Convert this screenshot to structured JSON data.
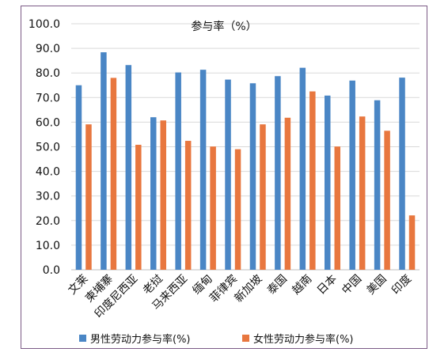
{
  "chart_data": {
    "type": "bar",
    "title": "参与率（%）",
    "categories": [
      "文莱",
      "柬埔寨",
      "印度尼西亚",
      "老挝",
      "马来西亚",
      "缅甸",
      "菲律宾",
      "新加坡",
      "泰国",
      "越南",
      "日本",
      "中国",
      "美国",
      "印度"
    ],
    "series": [
      {
        "name": "男性劳动力参与率(%)",
        "color": "#4a86c5",
        "values": [
          75.0,
          88.4,
          83.2,
          62.0,
          80.2,
          81.3,
          77.3,
          75.8,
          78.7,
          82.1,
          70.8,
          76.9,
          68.9,
          78.1
        ]
      },
      {
        "name": "女性劳动力参与率(%)",
        "color": "#e8773f",
        "values": [
          59.1,
          78.0,
          50.8,
          60.7,
          52.4,
          50.1,
          49.0,
          59.1,
          61.8,
          72.5,
          50.1,
          62.3,
          56.5,
          22.1
        ]
      }
    ],
    "ylim": [
      0,
      100
    ],
    "yticks": [
      "0.0",
      "10.0",
      "20.0",
      "30.0",
      "40.0",
      "50.0",
      "60.0",
      "70.0",
      "80.0",
      "90.0",
      "100.0"
    ],
    "grid": true,
    "legend_position": "bottom"
  }
}
